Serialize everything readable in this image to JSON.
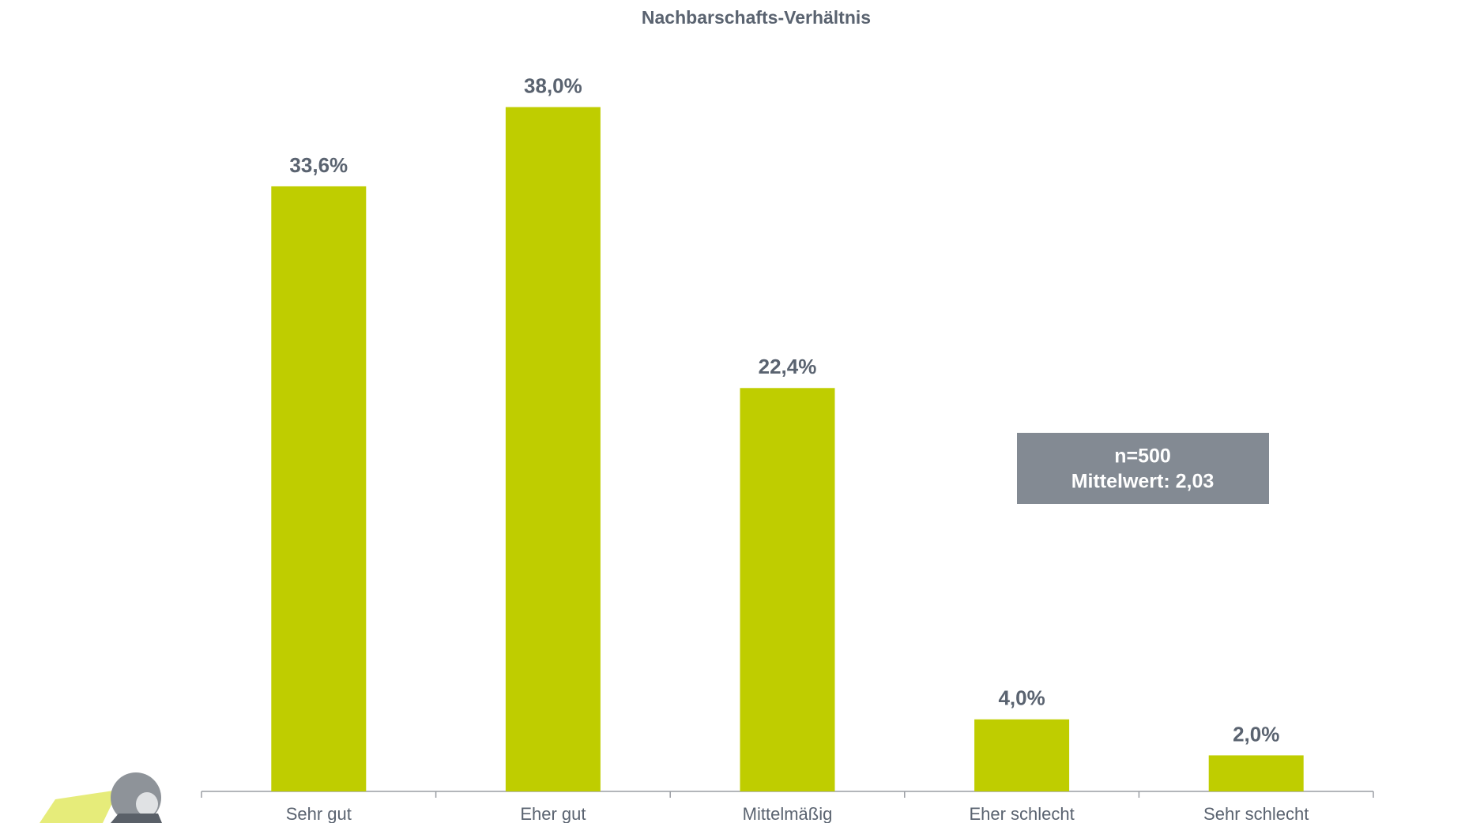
{
  "chart_data": {
    "type": "bar",
    "title": "Nachbarschafts-Verhältnis",
    "categories": [
      "Sehr gut",
      "Eher gut",
      "Mittelmäßig",
      "Eher schlecht",
      "Sehr schlecht"
    ],
    "values": [
      33.6,
      38.0,
      22.4,
      4.0,
      2.0
    ],
    "value_labels": [
      "33,6%",
      "38,0%",
      "22,4%",
      "4,0%",
      "2,0%"
    ],
    "color": "#bfcd00",
    "annotations": [
      "n=500",
      "Mittelwert: 2,03"
    ]
  }
}
